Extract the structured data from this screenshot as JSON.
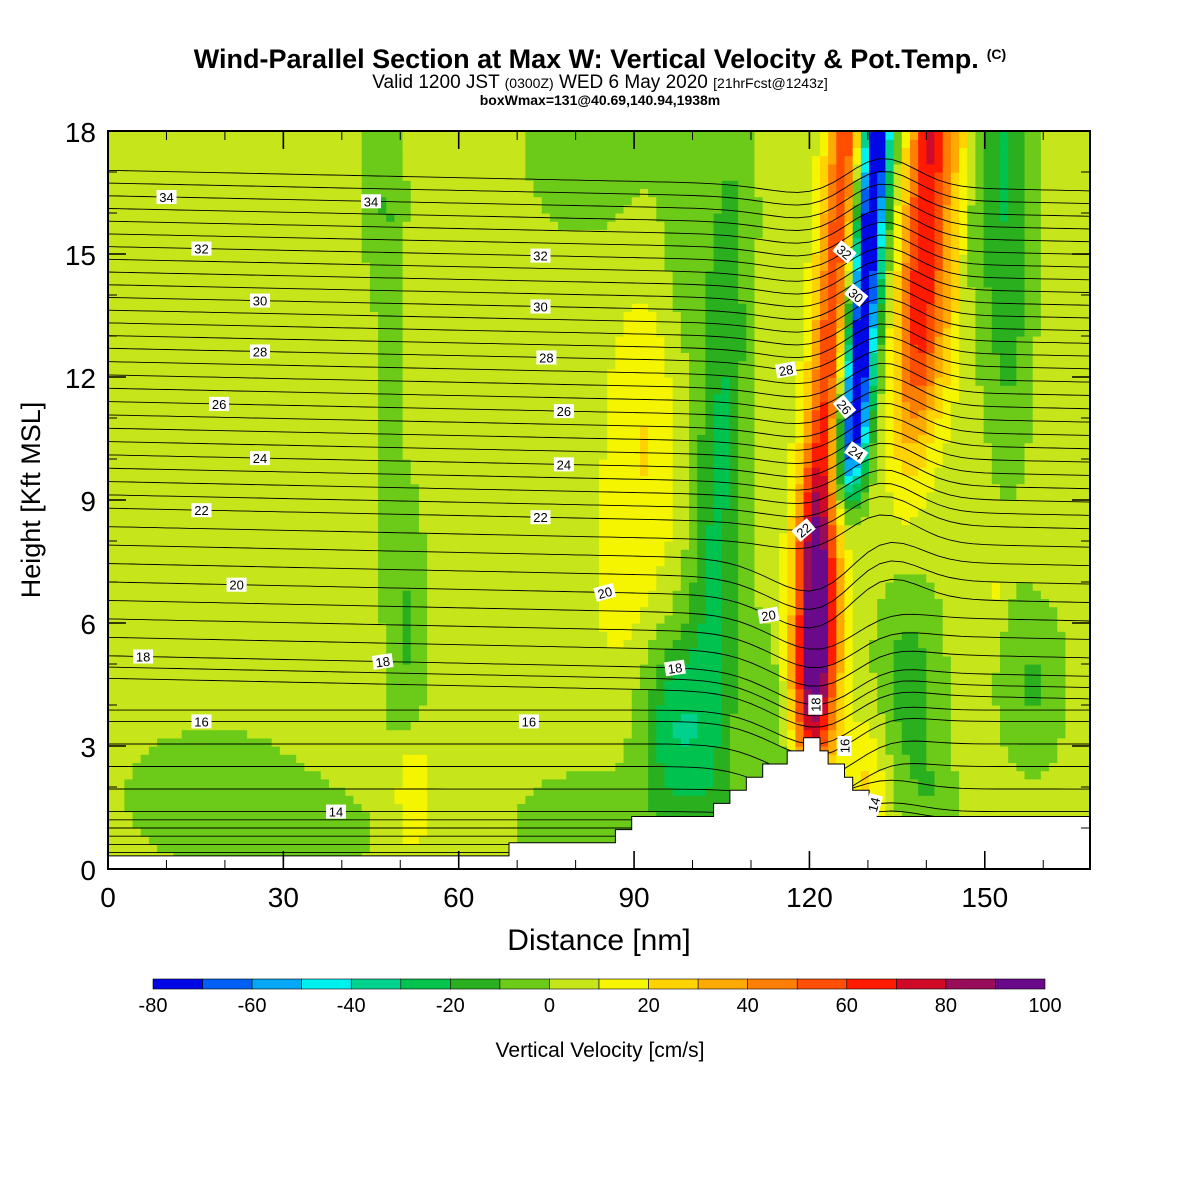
{
  "header": {
    "title": "Wind-Parallel Section at Max W: Vertical Velocity & Pot.Temp.",
    "copyright_mark": "(C)",
    "valid_prefix": "Valid 1200 JST",
    "valid_utc": "(0300Z)",
    "valid_date": "WED 6 May 2020",
    "forecast_tag": "[21hrFcst@1243z]",
    "box_info": "boxWmax=131@40.69,140.94,1938m"
  },
  "chart_data": {
    "type": "heatmap",
    "title": "Wind-Parallel Section at Max W: Vertical Velocity & Pot.Temp.",
    "xlabel": "Distance [nm]",
    "ylabel": "Height [Kft MSL]",
    "xlim": [
      0,
      168
    ],
    "ylim": [
      0,
      18
    ],
    "xticks": [
      0,
      30,
      60,
      90,
      120,
      150
    ],
    "yticks": [
      0,
      3,
      6,
      9,
      12,
      15,
      18
    ],
    "colorbar": {
      "label": "Vertical Velocity [cm/s]",
      "ticks": [
        -80,
        -60,
        -40,
        -20,
        0,
        20,
        40,
        60,
        80,
        100
      ],
      "levels": [
        -80,
        -70,
        -60,
        -50,
        -40,
        -30,
        -20,
        -10,
        0,
        10,
        20,
        30,
        40,
        50,
        60,
        70,
        80,
        90,
        100
      ],
      "colors": [
        "#0008e6",
        "#005ff5",
        "#00a8f5",
        "#00f2ee",
        "#00d18d",
        "#00c24f",
        "#2ab01f",
        "#6ccb19",
        "#c6e61b",
        "#f5f500",
        "#ffd300",
        "#ffaa00",
        "#ff7f00",
        "#ff4e00",
        "#ff1a00",
        "#cf0a28",
        "#990c59",
        "#6a0a8a"
      ]
    },
    "vertical_velocity_features": [
      {
        "type": "updraft",
        "x": 120,
        "y": 5,
        "peak": 100
      },
      {
        "type": "updraft",
        "x": 138,
        "y": 16.5,
        "peak": 70
      },
      {
        "type": "downdraft",
        "x": 127,
        "y": 14,
        "peak": -80
      },
      {
        "type": "updraft",
        "x": 93,
        "y": 10,
        "peak": 20
      },
      {
        "type": "updraft",
        "x": 52,
        "y": 2,
        "peak": 25
      }
    ],
    "terrain_max_kft": 3.2,
    "terrain_peak_nm": 120,
    "pot_temp_contour_labels": [
      "34",
      "34",
      "32",
      "32",
      "32",
      "30",
      "30",
      "30",
      "28",
      "28",
      "28",
      "26",
      "26",
      "26",
      "24",
      "24",
      "24",
      "22",
      "22",
      "22",
      "20",
      "20",
      "20",
      "18",
      "18",
      "18",
      "18",
      "16",
      "16",
      "16",
      "14",
      "14"
    ]
  }
}
